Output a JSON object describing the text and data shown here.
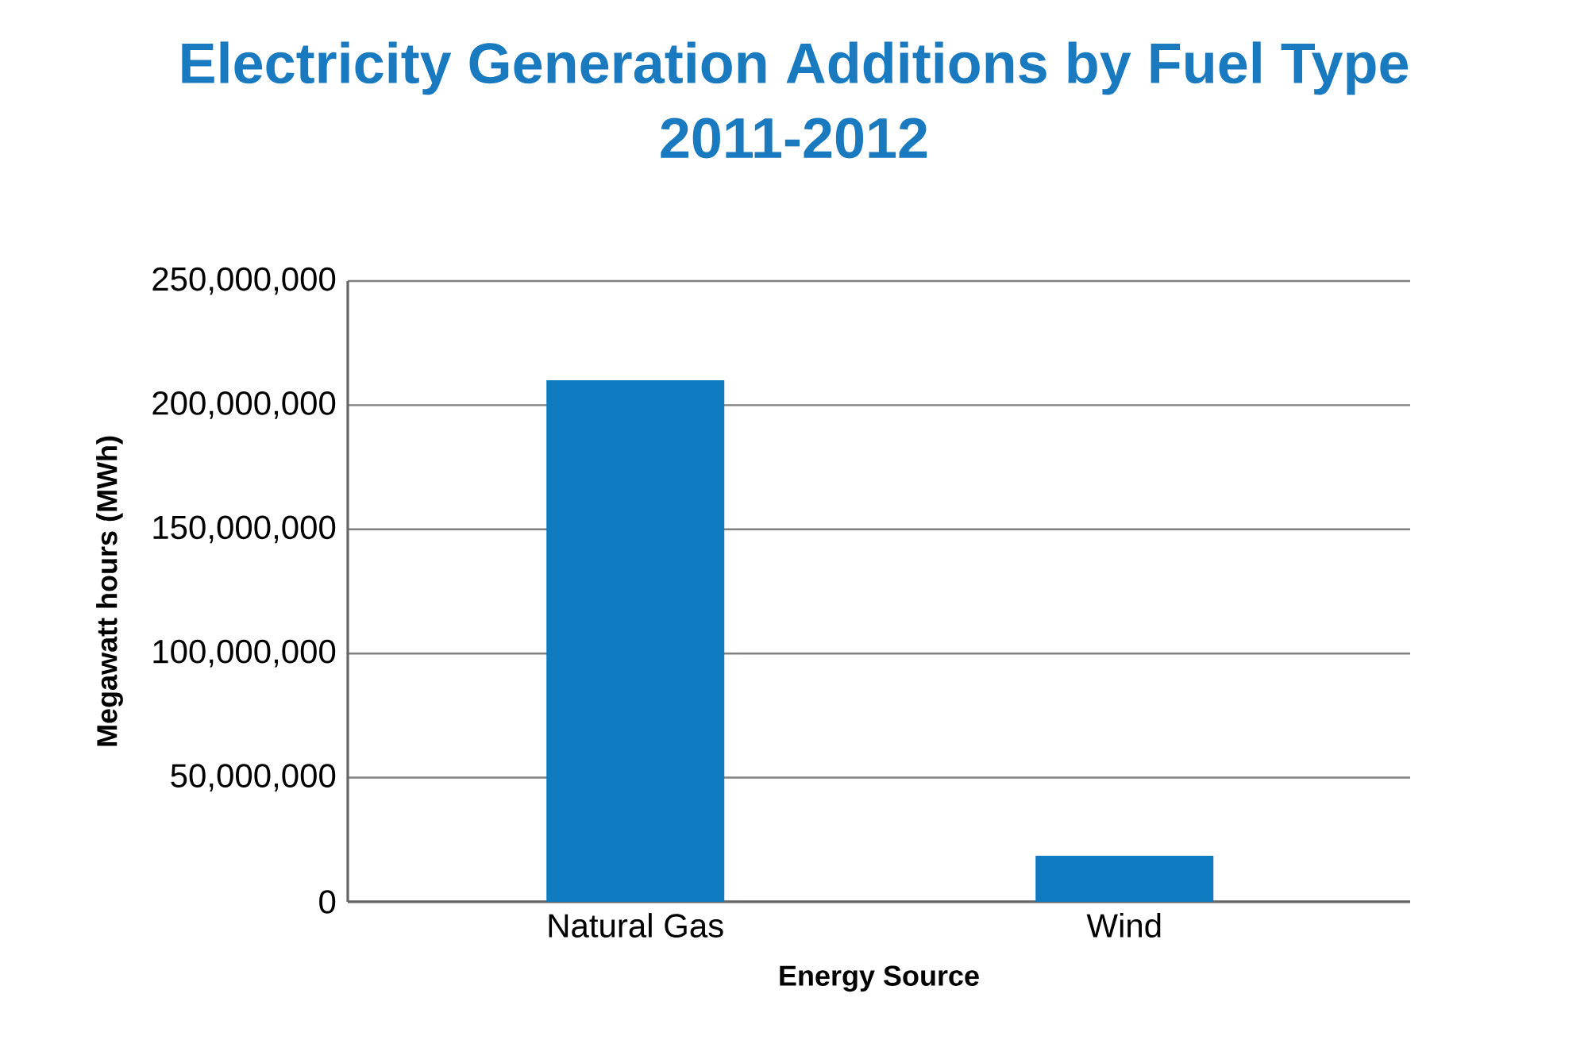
{
  "chart_data": {
    "type": "bar",
    "title": "Electricity Generation Additions by Fuel Type",
    "subtitle": "2011-2012",
    "xlabel": "Energy Source",
    "ylabel": "Megawatt hours (MWh)",
    "categories": [
      "Natural Gas",
      "Wind"
    ],
    "values": [
      210000000,
      18500000
    ],
    "color": "#0f7bc1",
    "ylim": [
      0,
      250000000
    ],
    "yticks": [
      {
        "value": 0,
        "label": "0"
      },
      {
        "value": 50000000,
        "label": "50,000,000"
      },
      {
        "value": 100000000,
        "label": "100,000,000"
      },
      {
        "value": 150000000,
        "label": "150,000,000"
      },
      {
        "value": 200000000,
        "label": "200,000,000"
      },
      {
        "value": 250000000,
        "label": "250,000,000"
      }
    ],
    "grid": "y"
  }
}
